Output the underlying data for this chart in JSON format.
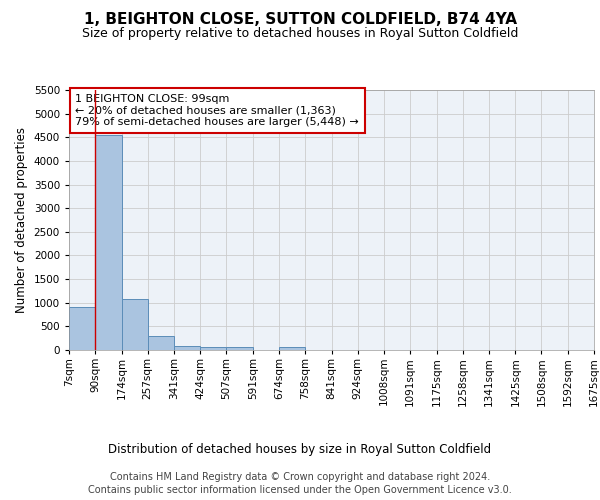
{
  "title": "1, BEIGHTON CLOSE, SUTTON COLDFIELD, B74 4YA",
  "subtitle": "Size of property relative to detached houses in Royal Sutton Coldfield",
  "xlabel": "Distribution of detached houses by size in Royal Sutton Coldfield",
  "ylabel": "Number of detached properties",
  "footer_line1": "Contains HM Land Registry data © Crown copyright and database right 2024.",
  "footer_line2": "Contains public sector information licensed under the Open Government Licence v3.0.",
  "annotation_title": "1 BEIGHTON CLOSE: 99sqm",
  "annotation_line1": "← 20% of detached houses are smaller (1,363)",
  "annotation_line2": "79% of semi-detached houses are larger (5,448) →",
  "property_size": 99,
  "bin_edges": [
    7,
    90,
    174,
    257,
    341,
    424,
    507,
    591,
    674,
    758,
    841,
    924,
    1008,
    1091,
    1175,
    1258,
    1341,
    1425,
    1508,
    1592,
    1675
  ],
  "bin_labels": [
    "7sqm",
    "90sqm",
    "174sqm",
    "257sqm",
    "341sqm",
    "424sqm",
    "507sqm",
    "591sqm",
    "674sqm",
    "758sqm",
    "841sqm",
    "924sqm",
    "1008sqm",
    "1091sqm",
    "1175sqm",
    "1258sqm",
    "1341sqm",
    "1425sqm",
    "1508sqm",
    "1592sqm",
    "1675sqm"
  ],
  "bar_heights": [
    900,
    4550,
    1075,
    300,
    75,
    65,
    65,
    0,
    65,
    0,
    0,
    0,
    0,
    0,
    0,
    0,
    0,
    0,
    0,
    0
  ],
  "bar_color": "#aac4e0",
  "bar_edge_color": "#5b8db8",
  "vline_color": "#cc0000",
  "ylim": [
    0,
    5500
  ],
  "yticks": [
    0,
    500,
    1000,
    1500,
    2000,
    2500,
    3000,
    3500,
    4000,
    4500,
    5000,
    5500
  ],
  "grid_color": "#cccccc",
  "background_color": "#edf2f8",
  "annotation_box_color": "#ffffff",
  "annotation_box_edge": "#cc0000",
  "title_fontsize": 11,
  "subtitle_fontsize": 9,
  "axis_label_fontsize": 8.5,
  "tick_fontsize": 7.5,
  "annotation_fontsize": 8,
  "footer_fontsize": 7
}
